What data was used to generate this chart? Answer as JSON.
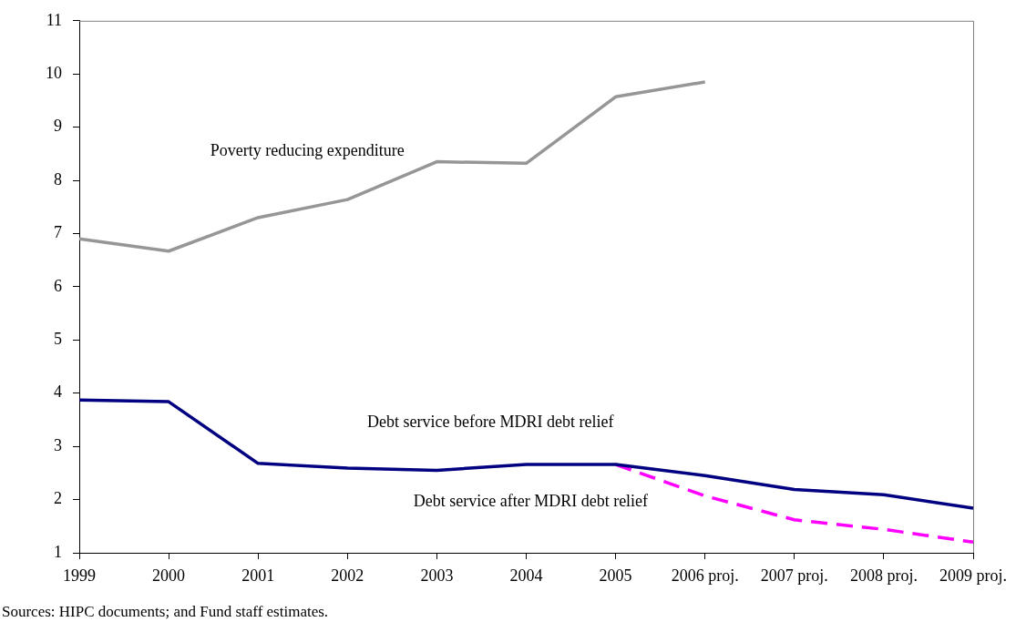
{
  "chart_data": {
    "type": "line",
    "categories": [
      "1999",
      "2000",
      "2001",
      "2002",
      "2003",
      "2004",
      "2005",
      "2006 proj.",
      "2007 proj.",
      "2008 proj.",
      "2009 proj."
    ],
    "series": [
      {
        "name": "Poverty reducing expenditure",
        "color": "#969696",
        "values": [
          6.9,
          6.67,
          7.3,
          7.64,
          8.35,
          8.32,
          9.57,
          9.85,
          null,
          null,
          null
        ]
      },
      {
        "name": "Debt service before MDRI debt relief",
        "color": "#000080",
        "values": [
          3.87,
          3.84,
          2.68,
          2.59,
          2.55,
          2.66,
          2.66,
          2.45,
          2.19,
          2.09,
          1.84
        ]
      },
      {
        "name": "Debt service after MDRI debt relief",
        "color": "#ff00ff",
        "line_style": "dashed",
        "values": [
          null,
          null,
          null,
          null,
          null,
          null,
          2.66,
          2.07,
          1.62,
          1.44,
          1.2
        ]
      }
    ],
    "ylim": [
      1,
      11
    ],
    "yticks": [
      1,
      2,
      3,
      4,
      5,
      6,
      7,
      8,
      9,
      10,
      11
    ],
    "grid": false,
    "legend": false,
    "marker": "none",
    "line_style": "solid",
    "annotations": [
      "Sources: HIPC documents; and Fund staff estimates."
    ]
  }
}
